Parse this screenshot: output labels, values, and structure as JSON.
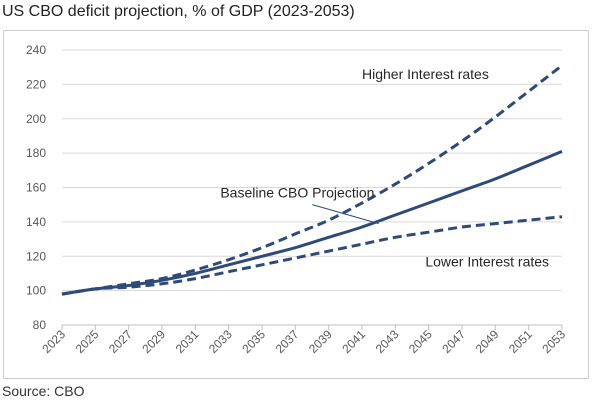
{
  "title": "US CBO deficit projection, % of GDP (2023-2053)",
  "source": "Source: CBO",
  "chart_data": {
    "type": "line",
    "title": "US CBO deficit projection, % of GDP (2023-2053)",
    "xlabel": "",
    "ylabel": "",
    "ylim": [
      80,
      240
    ],
    "yticks": [
      80,
      100,
      120,
      140,
      160,
      180,
      200,
      220,
      240
    ],
    "xticks": [
      "2023",
      "2025",
      "2027",
      "2029",
      "2031",
      "2033",
      "2035",
      "2037",
      "2039",
      "2041",
      "2043",
      "2045",
      "2047",
      "2049",
      "2051",
      "2053"
    ],
    "xlim": [
      2023,
      2053
    ],
    "grid": "horizontal",
    "colors": {
      "line": "#2e4a7a",
      "grid": "#d9d9d9",
      "axis": "#bfbfbf"
    },
    "series": [
      {
        "style": "dashed",
        "x": [
          2023,
          2025,
          2027,
          2029,
          2031,
          2033,
          2035,
          2037,
          2039,
          2041,
          2043,
          2045,
          2047,
          2049,
          2051,
          2053
        ],
        "values": [
          98,
          101,
          104,
          107,
          112,
          118,
          125,
          133,
          141,
          151,
          162,
          174,
          187,
          201,
          216,
          231
        ]
      },
      {
        "style": "solid",
        "x": [
          2023,
          2025,
          2027,
          2029,
          2031,
          2033,
          2035,
          2037,
          2039,
          2041,
          2043,
          2045,
          2047,
          2049,
          2051,
          2053
        ],
        "values": [
          98,
          101,
          103,
          106,
          110,
          115,
          120,
          125,
          131,
          137,
          144,
          151,
          158,
          165,
          173,
          181
        ]
      },
      {
        "style": "dashed",
        "x": [
          2023,
          2025,
          2027,
          2029,
          2031,
          2033,
          2035,
          2037,
          2039,
          2041,
          2043,
          2045,
          2047,
          2049,
          2051,
          2053
        ],
        "values": [
          98,
          101,
          102,
          104,
          107,
          111,
          115,
          119,
          123,
          127,
          131,
          134,
          137,
          139,
          141,
          143
        ]
      }
    ],
    "annotations": [
      {
        "text": "Higher Interest rates",
        "at_x": 2041,
        "at_y": 226
      },
      {
        "text": "Baseline CBO Projection",
        "at_x": 2032.5,
        "at_y": 157,
        "arrow_to_x": 2042,
        "arrow_to_y": 139
      },
      {
        "text": "Lower Interest rates",
        "at_x": 2044.8,
        "at_y": 117
      }
    ]
  }
}
